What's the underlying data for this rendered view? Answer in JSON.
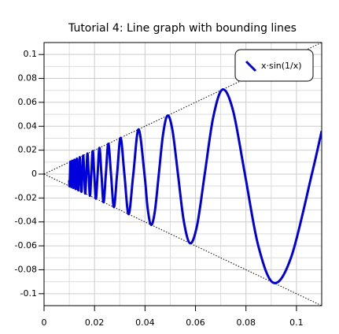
{
  "chart_data": {
    "type": "line",
    "title": "Tutorial 4: Line graph with bounding lines",
    "x": [
      0.01,
      0.010105,
      0.010268,
      0.010436,
      0.01061,
      0.01079,
      0.010976,
      0.011169,
      0.011368,
      0.011575,
      0.011789,
      0.012012,
      0.012243,
      0.012483,
      0.012732,
      0.012992,
      0.013263,
      0.013545,
      0.01384,
      0.014147,
      0.014469,
      0.014805,
      0.015158,
      0.015527,
      0.015916,
      0.016324,
      0.016753,
      0.017206,
      0.017684,
      0.018189,
      0.018724,
      0.019292,
      0.019894,
      0.020536,
      0.021221,
      0.021952,
      0.022736,
      0.023579,
      0.024486,
      0.025465,
      0.026526,
      0.027679,
      0.028937,
      0.030315,
      0.031831,
      0.033506,
      0.035368,
      0.037448,
      0.039789,
      0.041072,
      0.042441,
      0.043905,
      0.045473,
      0.047157,
      0.048971,
      0.05093,
      0.053052,
      0.055358,
      0.057875,
      0.06063,
      0.063662,
      0.067013,
      0.070736,
      0.074896,
      0.079578,
      0.084883,
      0.090946,
      0.097942,
      0.106103,
      0.11
    ],
    "series": [
      {
        "name": "x·sin(1/x)",
        "color": "#0000dd",
        "values": [
          -0.00506,
          -0.010105,
          0,
          0.010436,
          0,
          -0.01079,
          0,
          0.011169,
          0,
          -0.011575,
          0,
          0.012012,
          0,
          -0.012483,
          0,
          0.012992,
          0,
          -0.013545,
          0,
          0.014147,
          0,
          -0.014805,
          0,
          0.015527,
          0,
          -0.016324,
          0,
          0.017206,
          0,
          -0.018189,
          0,
          0.019292,
          0,
          -0.020536,
          0,
          0.021952,
          0,
          -0.023579,
          0,
          0.025465,
          0,
          -0.027679,
          0,
          0.030315,
          0,
          -0.033506,
          0,
          0.037448,
          0,
          -0.029042,
          -0.042441,
          -0.031045,
          0,
          0.033345,
          0.048971,
          0.036013,
          0,
          -0.039144,
          -0.057875,
          -0.042872,
          0,
          0.047385,
          0.070736,
          0.05296,
          0,
          -0.060021,
          -0.090946,
          -0.069255,
          0,
          0.0361
        ]
      }
    ],
    "bounds": [
      {
        "x": [
          0,
          0.11
        ],
        "values": [
          0,
          0.11
        ]
      },
      {
        "x": [
          0,
          0.11
        ],
        "values": [
          0,
          -0.11
        ]
      }
    ],
    "xlim": [
      0,
      0.11
    ],
    "ylim": [
      -0.11,
      0.11
    ],
    "xticks": [
      0,
      0.02,
      0.04,
      0.06,
      0.08,
      0.1
    ],
    "yticks": [
      -0.1,
      -0.08,
      -0.06,
      -0.04,
      -0.02,
      0,
      0.02,
      0.04,
      0.06,
      0.08,
      0.1
    ],
    "xminor": [
      0.01,
      0.03,
      0.05,
      0.07,
      0.09,
      0.11
    ],
    "yminor": [
      -0.11,
      -0.09,
      -0.07,
      -0.05,
      -0.03,
      -0.01,
      0.01,
      0.03,
      0.05,
      0.07,
      0.09,
      0.11
    ],
    "grid": true,
    "legend": "top-right"
  }
}
